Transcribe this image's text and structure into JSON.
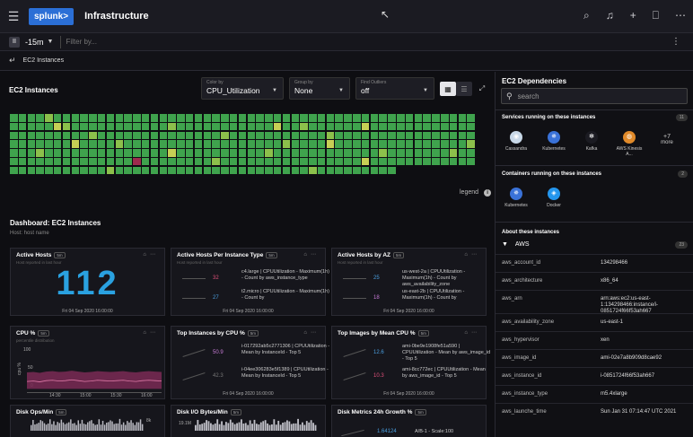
{
  "header": {
    "logo": "splunk>",
    "title": "Infrastructure",
    "icons": [
      "search-icon",
      "bell-icon",
      "plus-icon",
      "bookmark-icon",
      "more-icon"
    ]
  },
  "filterbar": {
    "time_range": "-15m",
    "filter_placeholder": "Filter by..."
  },
  "breadcrumb": {
    "label": "EC2 Instances"
  },
  "ec2_panel": {
    "title": "EC2 Instances",
    "color_by": {
      "label": "Color by",
      "value": "CPU_Utilization"
    },
    "group_by": {
      "label": "Group by",
      "value": "None"
    },
    "find_outliers": {
      "label": "Find Outliers",
      "value": "off"
    },
    "legend_label": "legend"
  },
  "heatmap": {
    "columns": 53,
    "colors": {
      "g": "#3fa34d",
      "l": "#8cc04b",
      "y": "#c7cf55",
      "r": "#9e2b4e"
    },
    "rows": [
      "gggglggggggggggggggggggggggggggggggggggggggggggggggggg",
      "gggggylggggggggggglgggggggggggygglggggggyggggggggggggg",
      "ggggggggglgggggggggggggglggggggggggglggggggggggggggggl",
      "gggggggygggglgggggggggggggggggglggggygggggggggggggggl",
      "ggglggggggggggggggygggggggggglgggggggggggglggggggglgg",
      "ggggggggggggggrgggggggglggggggggggggggggygggggggggggg",
      "ggggggggggglgggggggggggggggggggggglggggggggg"
    ]
  },
  "dashboard": {
    "title": "Dashboard: EC2 Instances",
    "subtitle": "Host: host name"
  },
  "cards": {
    "active_hosts": {
      "title": "Active Hosts",
      "badge": "5m",
      "sub": "Host reported in last hour",
      "value": "112",
      "time": "Fri 04 Sep 2020 16:00:00"
    },
    "per_type": {
      "title": "Active Hosts Per Instance Type",
      "badge": "5m",
      "sub": "Host reported in last hour",
      "time": "Fri 04 Sep 2020 16:00:00",
      "rows": [
        {
          "value": "32",
          "desc": "c4.large | CPUUtilization - Maximum(1h) - Count by aws_instance_type",
          "color": "#e0507a"
        },
        {
          "value": "27",
          "desc": "t2.micro | CPUUtilization - Maximum(1h) - Count by",
          "color": "#4a9fe0"
        }
      ]
    },
    "per_az": {
      "title": "Active Hosts by AZ",
      "badge": "5m",
      "sub": "Host reported in last hour",
      "time": "Fri 04 Sep 2020 16:00:00",
      "rows": [
        {
          "value": "25",
          "desc": "us-west-2a | CPUUtilization - Maximum(1h) - Count by aws_availability_zone",
          "color": "#4a9fe0"
        },
        {
          "value": "18",
          "desc": "us-east-2b | CPUUtilization - Maximum(1h) - Count by",
          "color": "#c77bd6"
        }
      ]
    },
    "cpu": {
      "title": "CPU %",
      "badge": "5m",
      "sub": "percentile distribution",
      "y_label": "cpu %",
      "y_ticks": [
        "100",
        "50",
        "0"
      ],
      "x_ticks": [
        "14:30",
        "15:00",
        "15:30",
        "16:00"
      ],
      "line": [
        28,
        29,
        27,
        30,
        31,
        29,
        30,
        32,
        30,
        28,
        29,
        31,
        30,
        29,
        30,
        31,
        29,
        28,
        30,
        31,
        30,
        29
      ]
    },
    "top_cpu": {
      "title": "Top Instances by CPU %",
      "badge": "5m",
      "time": "Fri 04 Sep 2020 16:00:00",
      "rows": [
        {
          "value": "50.9",
          "desc": "i-017292ab5c2771306 | CPUUtilization - Mean by InstanceId - Top 5",
          "color": "#c77bd6"
        },
        {
          "value": "42.3",
          "desc": "i-04ee306283e5f1389 | CPUUtilization - Mean by InstanceId - Top 5",
          "color": "#777"
        }
      ]
    },
    "top_images": {
      "title": "Top Images by Mean CPU %",
      "badge": "5m",
      "time": "Fri 04 Sep 2020 16:00:00",
      "rows": [
        {
          "value": "12.6",
          "desc": "ami-0be9e1908fe51a590 | CPUUtilization - Mean by aws_image_id - Top 5",
          "color": "#4a9fe0"
        },
        {
          "value": "10.3",
          "desc": "ami-8cc772ec | CPUUtilization - Mean by aws_image_id - Top 5",
          "color": "#e0507a"
        }
      ]
    },
    "disk_ops": {
      "title": "Disk Ops/Min",
      "badge": "5m",
      "tick": "8k"
    },
    "disk_io": {
      "title": "Disk I/O Bytes/Min",
      "badge": "5m",
      "tick": "19.1M"
    },
    "disk_growth": {
      "title": "Disk Metrics 24h Growth %",
      "badge": "5m",
      "value": "1.64124",
      "desc": "A/B-1 - Scale:100"
    }
  },
  "sidebar": {
    "title": "EC2 Dependencies",
    "search_placeholder": "search",
    "services_title": "Services running on these instances",
    "services_count": "11",
    "services": [
      {
        "label": "Cassandra",
        "color": "#c8d8e8",
        "glyph": "◉"
      },
      {
        "label": "Kubernetes",
        "color": "#3a72d8",
        "glyph": "✵"
      },
      {
        "label": "Kafka",
        "color": "#1b1b22",
        "glyph": "✻"
      },
      {
        "label": "AWS Kinesis A...",
        "color": "#e08a2a",
        "glyph": "◍"
      }
    ],
    "more_count": "+7",
    "more_label": "more",
    "containers_title": "Containers running on these instances",
    "containers_count": "2",
    "containers": [
      {
        "label": "Kubernetes",
        "color": "#3a72d8",
        "glyph": "✵"
      },
      {
        "label": "Docker",
        "color": "#2496ed",
        "glyph": "◈"
      }
    ],
    "about_title": "About these instances",
    "aws_label": "AWS",
    "aws_count": "23",
    "aws": [
      {
        "key": "aws_account_id",
        "value": "134298466"
      },
      {
        "key": "aws_architecture",
        "value": "x86_64"
      },
      {
        "key": "aws_arn",
        "value": "arn:aws:ec2:us-east-1:134298466:instance/i-0851724f66f53ah667"
      },
      {
        "key": "aws_availability_zone",
        "value": "us-east-1"
      },
      {
        "key": "aws_hypervisor",
        "value": "xen"
      },
      {
        "key": "aws_image_id",
        "value": "ami-02e7a8b909d8cae92"
      },
      {
        "key": "aws_instance_id",
        "value": "i-0851724f66f53ah667"
      },
      {
        "key": "aws_instance_type",
        "value": "m5.4xlarge"
      },
      {
        "key": "aws_launche_time",
        "value": "Sun Jan 31 07:14:47 UTC 2021"
      }
    ]
  }
}
